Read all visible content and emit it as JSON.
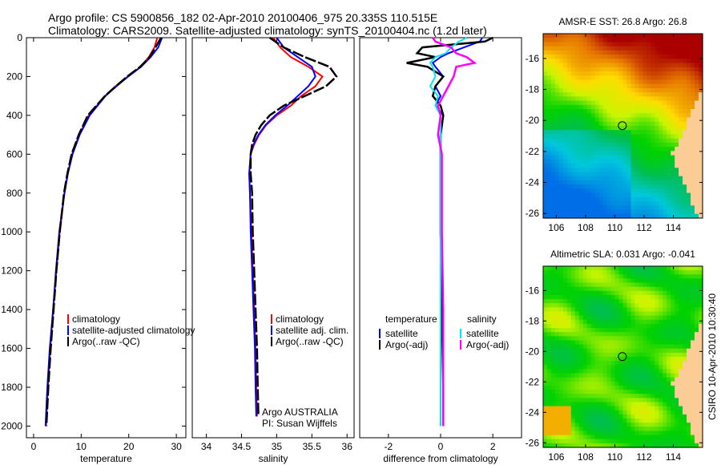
{
  "header": {
    "line1": "Argo profile: CS 5900856_182 02-Apr-2010 20100406_975 20.335S 110.515E",
    "line2": "Climatology: CARS2009. Satellite-adjusted climatology: synTS_20100404.nc (1.2d later)"
  },
  "colors": {
    "clim": "#ff0000",
    "sat": "#0000ff",
    "argo": "#000000",
    "sat_s": "#00e5ee",
    "argo_s": "#ff00ff",
    "land": "#fccc96"
  },
  "chart_data": [
    {
      "type": "line",
      "id": "temperature",
      "xlabel": "temperature",
      "ylabel": "",
      "xlim": [
        -1.5,
        32
      ],
      "ylim": [
        2060,
        0
      ],
      "xticks": [
        "0",
        "10",
        "20",
        "30"
      ],
      "yticks": [
        "0",
        "200",
        "400",
        "600",
        "800",
        "1000",
        "1200",
        "1400",
        "1600",
        "1800",
        "2000"
      ],
      "depth": [
        0,
        50,
        100,
        150,
        200,
        250,
        300,
        400,
        500,
        600,
        700,
        800,
        1000,
        1200,
        1400,
        1600,
        1800,
        2000
      ],
      "series": [
        {
          "name": "climatology",
          "color": "clim",
          "values": [
            26.0,
            25.4,
            24.2,
            22.5,
            19.8,
            17.2,
            15.0,
            11.6,
            9.6,
            8.1,
            7.2,
            6.5,
            5.5,
            4.8,
            4.1,
            3.5,
            3.0,
            2.6
          ]
        },
        {
          "name": "satellite-adjusted climatology",
          "color": "sat",
          "values": [
            27.0,
            26.2,
            24.6,
            22.6,
            19.9,
            17.4,
            15.1,
            11.8,
            9.7,
            8.2,
            7.2,
            6.5,
            5.4,
            4.7,
            4.1,
            3.4,
            2.9,
            2.5
          ]
        },
        {
          "name": "Argo(..raw -QC)",
          "color": "argo",
          "values": [
            26.8,
            25.6,
            24.4,
            22.4,
            19.7,
            17.3,
            15.0,
            11.4,
            9.5,
            8.0,
            7.1,
            6.4,
            5.5,
            4.8,
            4.2,
            3.6,
            3.1,
            2.7
          ]
        }
      ],
      "legend": [
        "climatology",
        "satellite-adjusted climatology",
        "Argo(..raw -QC)"
      ]
    },
    {
      "type": "line",
      "id": "salinity",
      "xlabel": "salinity",
      "xlim": [
        33.8,
        36.1
      ],
      "ylim": [
        2060,
        0
      ],
      "xticks": [
        "34",
        "34.5",
        "35",
        "35.5",
        "36"
      ],
      "tick_values": [
        34,
        34.5,
        35,
        35.5,
        36
      ],
      "depth": [
        0,
        50,
        100,
        150,
        200,
        250,
        300,
        350,
        400,
        450,
        500,
        550,
        600,
        700,
        800,
        1000,
        1200,
        1400,
        1600,
        1800,
        1950
      ],
      "series": [
        {
          "name": "climatology",
          "color": "clim",
          "values": [
            34.95,
            35.05,
            35.2,
            35.45,
            35.65,
            35.55,
            35.35,
            35.2,
            35.0,
            34.85,
            34.75,
            34.68,
            34.63,
            34.61,
            34.62,
            34.64,
            34.66,
            34.68,
            34.7,
            34.71,
            34.72
          ]
        },
        {
          "name": "satellite adj. clim.",
          "color": "sat",
          "values": [
            35.0,
            35.1,
            35.3,
            35.5,
            35.55,
            35.45,
            35.3,
            35.15,
            34.98,
            34.84,
            34.74,
            34.67,
            34.63,
            34.61,
            34.62,
            34.63,
            34.65,
            34.67,
            34.69,
            34.7,
            34.71
          ]
        },
        {
          "name": "Argo(..raw -QC)",
          "color": "argo",
          "values": [
            34.9,
            35.1,
            35.4,
            35.75,
            35.85,
            35.7,
            35.4,
            35.1,
            34.9,
            34.78,
            34.7,
            34.65,
            34.63,
            34.63,
            34.65,
            34.66,
            34.68,
            34.7,
            34.72,
            34.73,
            34.74
          ]
        }
      ],
      "legend": [
        "climatology",
        "satellite adj. clim.",
        "Argo(..raw -QC)"
      ],
      "annotation": [
        "Argo AUSTRALIA",
        "PI: Susan Wijffels"
      ]
    },
    {
      "type": "line",
      "id": "difference",
      "xlabel": "difference from climatology",
      "xlim": [
        -3.1,
        3.1
      ],
      "ylim": [
        2060,
        0
      ],
      "xticks": [
        "-2",
        "0",
        "2"
      ],
      "tick_values": [
        -2,
        0,
        2
      ],
      "depth": [
        0,
        20,
        50,
        80,
        100,
        130,
        150,
        200,
        250,
        300,
        350,
        400,
        500,
        600,
        800,
        1000,
        1400,
        1800,
        2000
      ],
      "series": [
        {
          "name": "temperature satellite",
          "color": "sat",
          "values": [
            1.6,
            1.5,
            0.9,
            0.3,
            0.0,
            -0.3,
            -0.2,
            0.1,
            -0.2,
            0.0,
            -0.2,
            0.1,
            0.0,
            0.0,
            0.0,
            0.0,
            0.0,
            0.0,
            0.0
          ]
        },
        {
          "name": "temperature Argo(-adj)",
          "color": "argo",
          "values": [
            2.0,
            1.7,
            -0.7,
            -0.9,
            -0.2,
            -1.3,
            -0.5,
            0.1,
            -0.2,
            -0.3,
            0.0,
            0.1,
            0.0,
            0.0,
            0.0,
            0.0,
            0.05,
            0.1,
            0.1
          ]
        },
        {
          "name": "salinity satellite",
          "color": "sat_s",
          "values": [
            1.0,
            0.7,
            0.4,
            0.2,
            -0.2,
            -0.4,
            -0.3,
            -0.2,
            -0.4,
            -0.1,
            -0.2,
            0.0,
            0.0,
            0.0,
            0.0,
            0.0,
            0.0,
            0.0,
            0.0
          ]
        },
        {
          "name": "salinity Argo(-adj)",
          "color": "argo_s",
          "values": [
            -0.3,
            -0.2,
            0.4,
            0.6,
            1.0,
            1.3,
            0.6,
            0.5,
            0.3,
            0.1,
            -0.1,
            0.0,
            -0.1,
            0.05,
            0.05,
            0.05,
            0.1,
            0.1,
            0.1
          ]
        }
      ],
      "legend_headers": [
        "temperature",
        "salinity"
      ],
      "legend": [
        "satellite",
        "Argo(-adj)",
        "satellite",
        "Argo(-adj)"
      ]
    }
  ],
  "maps": [
    {
      "id": "sst",
      "title": "AMSR-E SST: 26.8 Argo: 26.8",
      "kind": "sst"
    },
    {
      "id": "sla",
      "title": "Altimetric SLA: 0.031 Argo: -0.041",
      "kind": "sla"
    }
  ],
  "map_axes": {
    "lon_ticks": [
      "106",
      "108",
      "110",
      "112",
      "114"
    ],
    "lon_values": [
      106,
      108,
      110,
      112,
      114
    ],
    "lat_ticks": [
      "-16",
      "-18",
      "-20",
      "-22",
      "-24",
      "-26"
    ],
    "lat_values": [
      -16,
      -18,
      -20,
      -22,
      -24,
      -26
    ],
    "lon_range": [
      105.1,
      116
    ],
    "lat_range": [
      -14.4,
      -26.3
    ],
    "argo_lon": 110.515,
    "argo_lat": -20.335
  },
  "footer": {
    "stamp": "CSIRO 10-Apr-2010 10:30:40"
  }
}
